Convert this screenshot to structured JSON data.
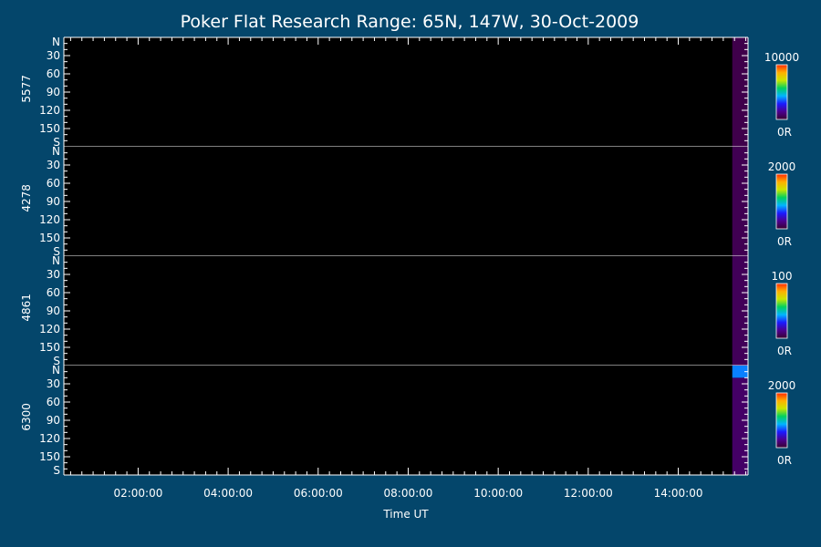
{
  "colors": {
    "background": "#04466b",
    "plot": "#000000",
    "foreground": "#ffffff",
    "colormap": [
      "#3a0030",
      "#4b0090",
      "#1a1aff",
      "#00b4ff",
      "#00d060",
      "#c8e600",
      "#ffb000",
      "#ff2a00"
    ]
  },
  "chart_data": {
    "type": "heatmap",
    "title": "Poker Flat Research Range: 65N, 147W, 30-Oct-2009",
    "xlabel": "Time UT",
    "xticks": [
      "02:00:00",
      "04:00:00",
      "06:00:00",
      "08:00:00",
      "10:00:00",
      "12:00:00",
      "14:00:00"
    ],
    "xrange_hours": [
      0.35,
      15.55
    ],
    "ytick_labels": [
      "N",
      "30",
      "60",
      "90",
      "120",
      "150",
      "S"
    ],
    "yrange_deg": [
      0,
      180
    ],
    "panels": [
      {
        "label": "5577",
        "scale_max": "10000",
        "scale_min": "0R",
        "data": [
          {
            "t_start": 15.2,
            "t_end": 15.55,
            "y_start": 0,
            "y_end": 180,
            "level": 0.04
          }
        ]
      },
      {
        "label": "4278",
        "scale_max": "2000",
        "scale_min": "0R",
        "data": [
          {
            "t_start": 15.2,
            "t_end": 15.55,
            "y_start": 0,
            "y_end": 180,
            "level": 0.05
          }
        ]
      },
      {
        "label": "4861",
        "scale_max": "100",
        "scale_min": "0R",
        "data": [
          {
            "t_start": 15.2,
            "t_end": 15.55,
            "y_start": 0,
            "y_end": 180,
            "level": 0.06
          }
        ]
      },
      {
        "label": "6300",
        "scale_max": "2000",
        "scale_min": "0R",
        "data": [
          {
            "t_start": 15.2,
            "t_end": 15.55,
            "y_start": 20,
            "y_end": 180,
            "level": 0.08
          },
          {
            "t_start": 15.2,
            "t_end": 15.55,
            "y_start": 0,
            "y_end": 20,
            "level": 0.38
          }
        ]
      }
    ]
  }
}
